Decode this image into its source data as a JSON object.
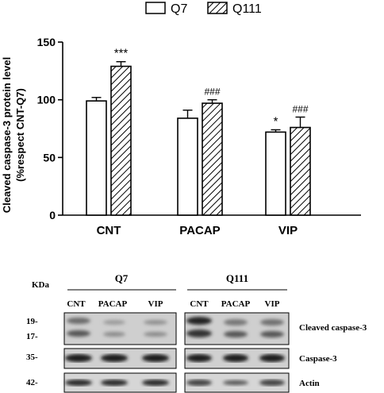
{
  "chart_data": {
    "type": "bar",
    "categories": [
      "CNT",
      "PACAP",
      "VIP"
    ],
    "series": [
      {
        "name": "Q7",
        "values": [
          99,
          84,
          72
        ],
        "errors": [
          3,
          7,
          2
        ],
        "annotations": [
          "",
          "",
          "*"
        ],
        "pattern": "solid-white"
      },
      {
        "name": "Q111",
        "values": [
          129,
          97,
          76
        ],
        "errors": [
          4,
          3,
          9
        ],
        "annotations": [
          "***",
          "###",
          "###"
        ],
        "pattern": "hatched"
      }
    ],
    "title": "",
    "ylabel_lines": [
      "Cleaved caspase-3 protein level",
      "(%respect CNT-Q7)"
    ],
    "xlabel": "",
    "ylim": [
      0,
      150
    ],
    "yticks": [
      "0",
      "50",
      "100",
      "150"
    ],
    "legend_position": "top",
    "grid": false
  },
  "blot": {
    "kda_label": "KDa",
    "groups": [
      "Q7",
      "Q111"
    ],
    "lane_labels": [
      "CNT",
      "PACAP",
      "VIP",
      "CNT",
      "PACAP",
      "VIP"
    ],
    "rows": [
      {
        "marker": "19-",
        "marker2": "17-",
        "label": "Cleaved caspase-3"
      },
      {
        "marker": "35-",
        "label": "Caspase-3"
      },
      {
        "marker": "42-",
        "label": "Actin"
      }
    ]
  },
  "colors": {
    "axis": "#000000",
    "bar_fill": "#ffffff",
    "band": "#1a1a1a",
    "panel_bg": "#d8d8d8"
  }
}
